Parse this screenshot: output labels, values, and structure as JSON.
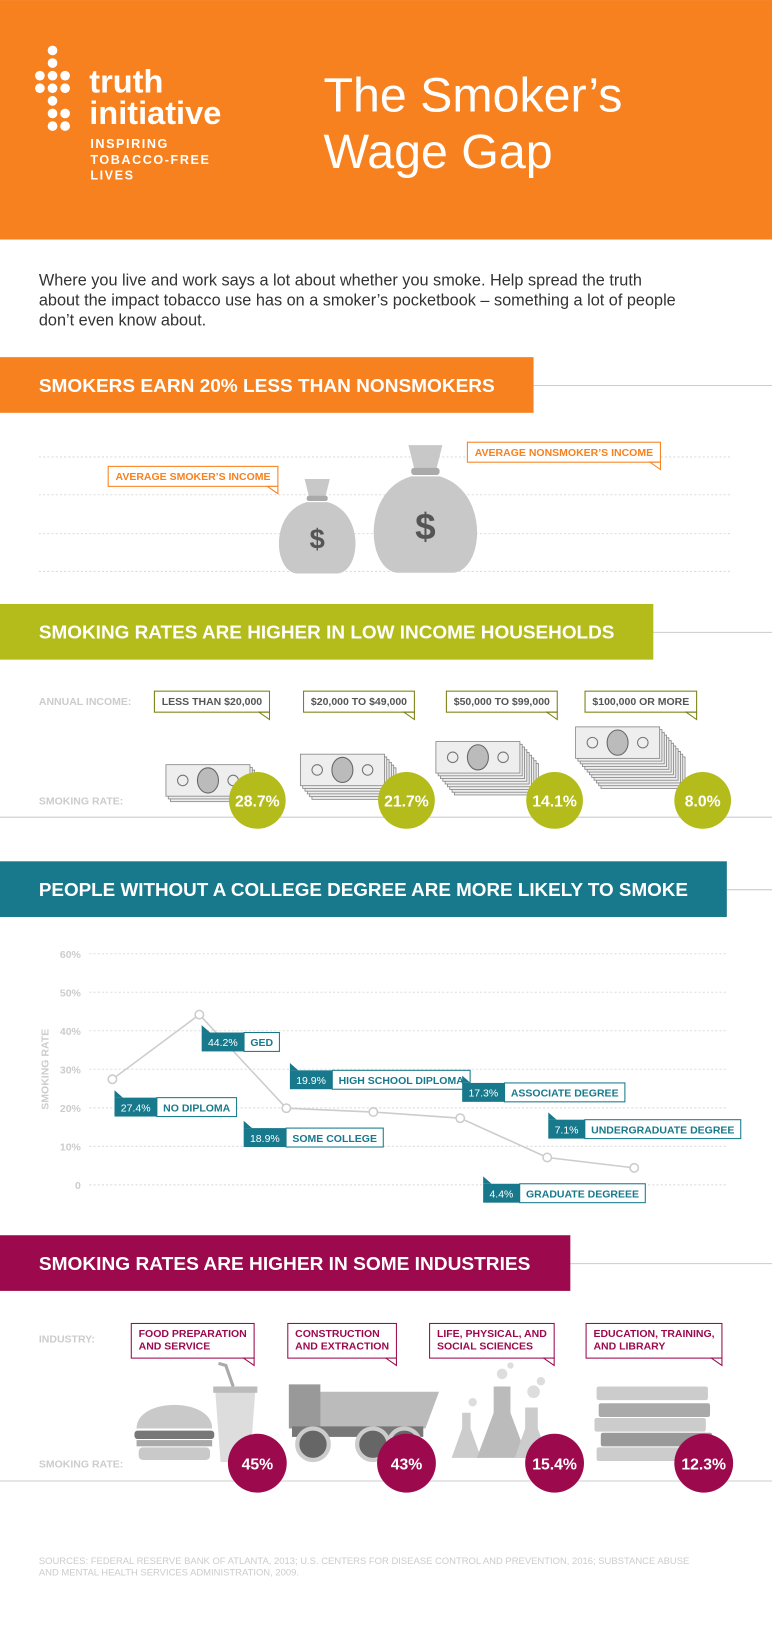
{
  "header": {
    "logo": [
      "truth",
      "initiative"
    ],
    "tagline": [
      "INSPIRING",
      "TOBACCO-FREE",
      "LIVES"
    ],
    "title": [
      "The Smoker’s",
      "Wage Gap"
    ]
  },
  "intro": [
    "Where you live and work says a lot about whether you smoke. Help spread the truth",
    "about the impact tobacco use has on a smoker’s pocketbook – something a lot of people",
    "don’t even know about."
  ],
  "income_gap": {
    "title": "SMOKERS EARN 20% LESS THAN NONSMOKERS",
    "bags": [
      {
        "label": "AVERAGE SMOKER’S INCOME",
        "symbol": "$"
      },
      {
        "label": "AVERAGE NONSMOKER’S INCOME",
        "symbol": "$"
      }
    ]
  },
  "income_rates": {
    "title": "SMOKING RATES ARE HIGHER IN LOW INCOME HOUSEHOLDS",
    "category_label": "ANNUAL INCOME:",
    "value_label": "SMOKING RATE:",
    "categories": [
      "LESS THAN $20,000",
      "$20,000 TO $49,000",
      "$50,000 TO $99,000",
      "$100,000 OR MORE"
    ],
    "values": [
      28.7,
      21.7,
      14.1,
      8.0
    ],
    "value_labels": [
      "28.7%",
      "21.7%",
      "14.1%",
      "8.0%"
    ]
  },
  "chart_data": {
    "type": "line",
    "title": "PEOPLE WITHOUT A COLLEGE DEGREE ARE MORE LIKELY TO SMOKE",
    "ylabel": "SMOKING RATE",
    "categories": [
      "NO DIPLOMA",
      "GED",
      "HIGH SCHOOL DIPLOMA",
      "SOME COLLEGE",
      "ASSOCIATE DEGREE",
      "UNDERGRADUATE DEGREE",
      "GRADUATE DEGREEE"
    ],
    "values": [
      27.4,
      44.2,
      19.9,
      18.9,
      17.3,
      7.1,
      4.4
    ],
    "value_labels": [
      "27.4%",
      "44.2%",
      "19.9%",
      "18.9%",
      "17.3%",
      "7.1%",
      "4.4%"
    ],
    "color": "#17798b",
    "ylim": [
      0,
      60
    ],
    "yticks": [
      0,
      {
        "value": 10,
        "label": "10%"
      },
      {
        "value": 20,
        "label": "20%"
      },
      {
        "value": 30,
        "label": "30%"
      },
      {
        "value": 40,
        "label": "40%"
      },
      {
        "value": 50,
        "label": "50%"
      },
      {
        "value": 60,
        "label": "60%"
      }
    ],
    "grid": true
  },
  "industries": {
    "title": "SMOKING RATES ARE HIGHER IN SOME INDUSTRIES",
    "category_label": "INDUSTRY:",
    "value_label": "SMOKING RATE:",
    "categories": [
      [
        "FOOD PREPARATION",
        "AND SERVICE"
      ],
      [
        "CONSTRUCTION",
        "AND EXTRACTION"
      ],
      [
        "LIFE, PHYSICAL, AND",
        "SOCIAL SCIENCES"
      ],
      [
        "EDUCATION, TRAINING,",
        "AND LIBRARY"
      ]
    ],
    "values": [
      45,
      43,
      15.4,
      12.3
    ],
    "value_labels": [
      "45%",
      "43%",
      "15.4%",
      "12.3%"
    ]
  },
  "sources": [
    "SOURCES: FEDERAL RESERVE BANK OF ATLANTA, 2013; U.S. CENTERS FOR DISEASE CONTROL AND PREVENTION, 2016; SUBSTANCE ABUSE",
    "AND MENTAL HEALTH SERVICES ADMINISTRATION, 2009."
  ]
}
